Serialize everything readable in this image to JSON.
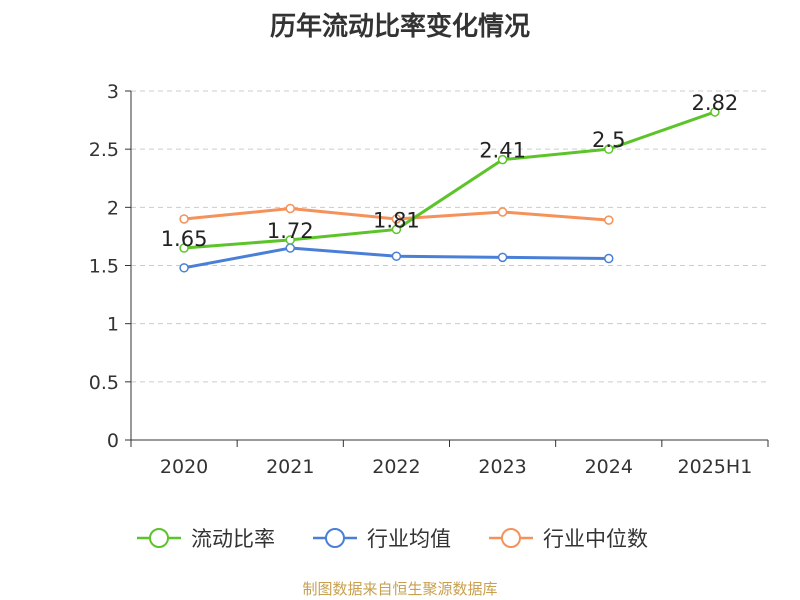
{
  "chart_data": {
    "type": "line",
    "title": "历年流动比率变化情况",
    "categories": [
      "2020",
      "2021",
      "2022",
      "2023",
      "2024",
      "2025H1"
    ],
    "ylim": [
      0,
      3
    ],
    "yticks": [
      "0",
      "0.5",
      "1",
      "1.5",
      "2",
      "2.5",
      "3"
    ],
    "grid": "horizontal-dashed",
    "legend_position": "bottom",
    "series": [
      {
        "name": "流动比率",
        "color": "#5cc42a",
        "values": [
          1.65,
          1.72,
          1.81,
          2.41,
          2.5,
          2.82
        ],
        "labels": [
          "1.65",
          "1.72",
          "1.81",
          "2.41",
          "2.5",
          "2.82"
        ]
      },
      {
        "name": "行业均值",
        "color": "#4a7fd8",
        "values": [
          1.48,
          1.65,
          1.58,
          1.57,
          1.56,
          null
        ]
      },
      {
        "name": "行业中位数",
        "color": "#f5915a",
        "values": [
          1.9,
          1.99,
          1.9,
          1.96,
          1.89,
          null
        ]
      }
    ],
    "source": "制图数据来自恒生聚源数据库"
  }
}
